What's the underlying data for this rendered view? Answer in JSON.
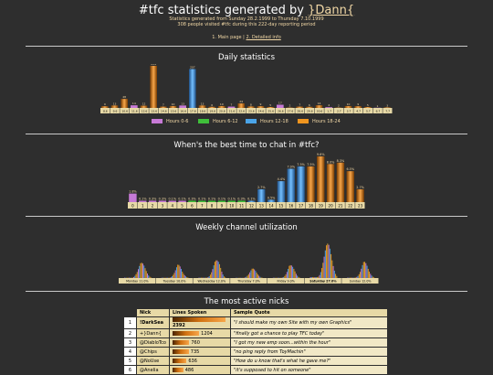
{
  "header": {
    "title_prefix": "#tfc statistics generated by ",
    "title_link": "}Dann{",
    "line1": "Statistics generated from Sunday 28.2.1999 to Thursday 7.10.1999",
    "line2": "308 people visited #tfc during this 222-day reporting period",
    "nav_main": "1. Main page",
    "nav_sep": " | ",
    "nav_detail": "2. Detailed info"
  },
  "daily": {
    "title": "Daily statistics",
    "legend": [
      {
        "label": "Hours 0-6",
        "color": "#c77ad6"
      },
      {
        "label": "Hours 6-12",
        "color": "#3fbf3a"
      },
      {
        "label": "Hours 12-18",
        "color": "#4aa4e8"
      },
      {
        "label": "Hours 18-24",
        "color": "#f0951f"
      }
    ]
  },
  "hourly": {
    "title": "When's the best time to chat in #tfc?"
  },
  "weekly": {
    "title": "Weekly channel utilization"
  },
  "nicks_section": {
    "title": "The most active nicks",
    "headers": [
      "Nick",
      "Lines Spoken",
      "Sample Quote"
    ],
    "rows": [
      {
        "idx": "1",
        "nick": "!DarkSea",
        "lines": "2392",
        "quote": "\"I should make my own Site with my own Graphics\""
      },
      {
        "idx": "2",
        "nick": "+}Dann{",
        "lines": "1204",
        "quote": "\"finally got a chance to play TFC today\""
      },
      {
        "idx": "3",
        "nick": "@DiabloTco",
        "lines": "760",
        "quote": "\"I got my new emp soon...within the hour\""
      },
      {
        "idx": "4",
        "nick": "@Chips",
        "lines": "735",
        "quote": "\"no ping reply from ToyMachin\""
      },
      {
        "idx": "5",
        "nick": "@NoUse",
        "lines": "636",
        "quote": "\"How do u know that's what he gave me?\""
      },
      {
        "idx": "6",
        "nick": "@Anelia",
        "lines": "486",
        "quote": "\"it's supposed to hit on someone\""
      }
    ]
  },
  "chart_data": [
    {
      "type": "bar",
      "title": "Daily statistics",
      "categories": [
        "8.6",
        "9.6",
        "10.6",
        "11.6",
        "12.6",
        "13.6",
        "14.6",
        "15.6",
        "16.6",
        "17.6",
        "18.6",
        "19.6",
        "20.6",
        "21.6",
        "22.6",
        "23.6",
        "24.6",
        "25.6",
        "26.6",
        "27.6",
        "28.6",
        "29.6",
        "30.6",
        "1.7",
        "2.7",
        "3.7",
        "4.7",
        "5.7",
        "6.7",
        "7.7"
      ],
      "values": [
        9,
        13,
        48,
        14,
        12,
        224,
        7,
        10,
        13,
        207,
        13,
        6,
        10,
        7,
        24,
        8,
        9,
        5,
        17,
        2,
        7,
        6,
        14,
        4,
        2,
        10,
        9,
        5,
        1,
        3
      ]
    },
    {
      "type": "bar",
      "title": "When's the best time to chat in #tfc?",
      "categories": [
        "0",
        "1",
        "2",
        "3",
        "4",
        "5",
        "6",
        "7",
        "8",
        "9",
        "10",
        "11",
        "12",
        "13",
        "14",
        "15",
        "16",
        "17",
        "18",
        "19",
        "20",
        "21",
        "22",
        "23"
      ],
      "values": [
        1.8,
        0.1,
        0.3,
        0.3,
        0.1,
        0.1,
        0.3,
        0.1,
        0.1,
        0.1,
        0.1,
        0.3,
        0.1,
        2.7,
        0.5,
        4.4,
        7.0,
        7.5,
        7.5,
        9.6,
        8.0,
        8.3,
        6.5,
        2.7
      ],
      "labels": [
        "1.8%",
        "0.1%",
        "0.3%",
        "0.3%",
        "0.1%",
        "0.1%",
        "0.3%",
        "0.1%",
        "0.1%",
        "0.1%",
        "0.1%",
        "0.3%",
        "0.1%",
        "2.7%",
        "0.5%",
        "4.4%",
        "7.0%",
        "7.5%",
        "7.5%",
        "9.6%",
        "8.0%",
        "8.3%",
        "6.5%",
        "2.7%"
      ]
    },
    {
      "type": "area",
      "title": "Weekly channel utilization",
      "categories": [
        "Monday 11.0%",
        "Tuesday 10.0%",
        "Wednesday 12.0%",
        "Thursday 7.0%",
        "Friday 9.0%",
        "Saturday 27.0%",
        "Sunday 12.0%"
      ],
      "values": [
        11.0,
        10.0,
        12.0,
        7.0,
        9.0,
        27.0,
        12.0
      ]
    }
  ],
  "colors": {
    "accent": "#f2d8a6",
    "bar_orange": "#f0951f",
    "bar_blue": "#4aa4e8",
    "bar_purple": "#c77ad6",
    "bar_green": "#3fbf3a"
  }
}
